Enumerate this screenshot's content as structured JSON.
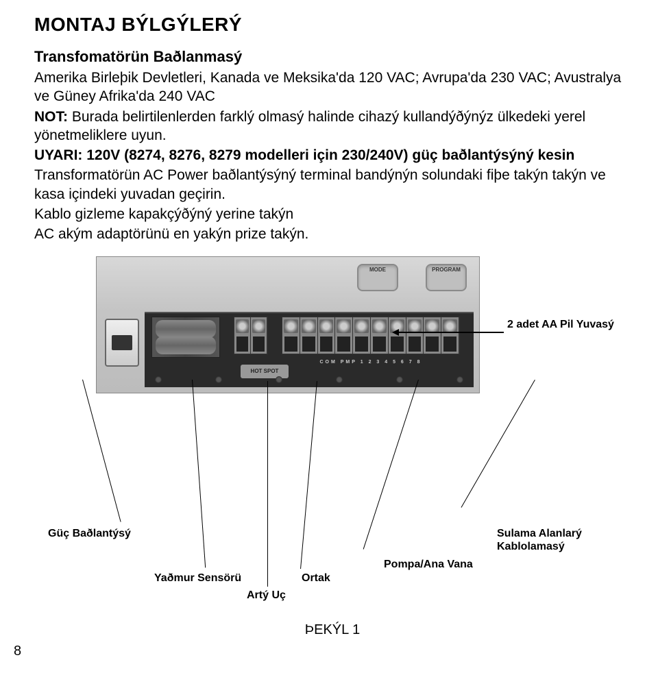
{
  "heading": "MONTAJ BÝLGÝLERÝ",
  "section": {
    "title": "Transfomatörün Baðlanmasý",
    "line1": "Amerika Birleþik Devletleri, Kanada ve Meksika'da 120 VAC; Avrupa'da 230 VAC; Avustralya ve Güney Afrika'da 240 VAC",
    "note_label": "NOT:",
    "note_text": " Burada belirtilenlerden farklý olmasý halinde cihazý kullandýðýnýz ülkedeki yerel yönetmeliklere uyun.",
    "warn_label": "UYARI:",
    "warn_text": " 120V (8274, 8276, 8279 modelleri için 230/240V) güç baðlantýsýný kesin",
    "body1": "Transformatörün AC Power baðlantýsýný terminal bandýnýn solundaki fiþe takýn takýn ve kasa içindeki yuvadan geçirin.",
    "body2": "Kablo gizleme kapakçýðýný yerine takýn",
    "body3": "AC akým adaptörünü en yakýn prize takýn."
  },
  "device": {
    "mode_btn": "MODE",
    "program_btn": "PROGRAM",
    "hotspot": "HOT SPOT",
    "term_labels": "COM  PMP  1  2  3  4  5  6  7  8"
  },
  "callouts": {
    "battery": "2 adet AA Pil Yuvasý",
    "power": "Güç Baðlantýsý",
    "rain": "Yaðmur Sensörü",
    "extra": "Artý Uç",
    "common": "Ortak",
    "pump": "Pompa/Ana Vana",
    "zones": "Sulama Alanlarý Kablolamasý"
  },
  "figure": "ÞEKÝL 1",
  "page": "8"
}
